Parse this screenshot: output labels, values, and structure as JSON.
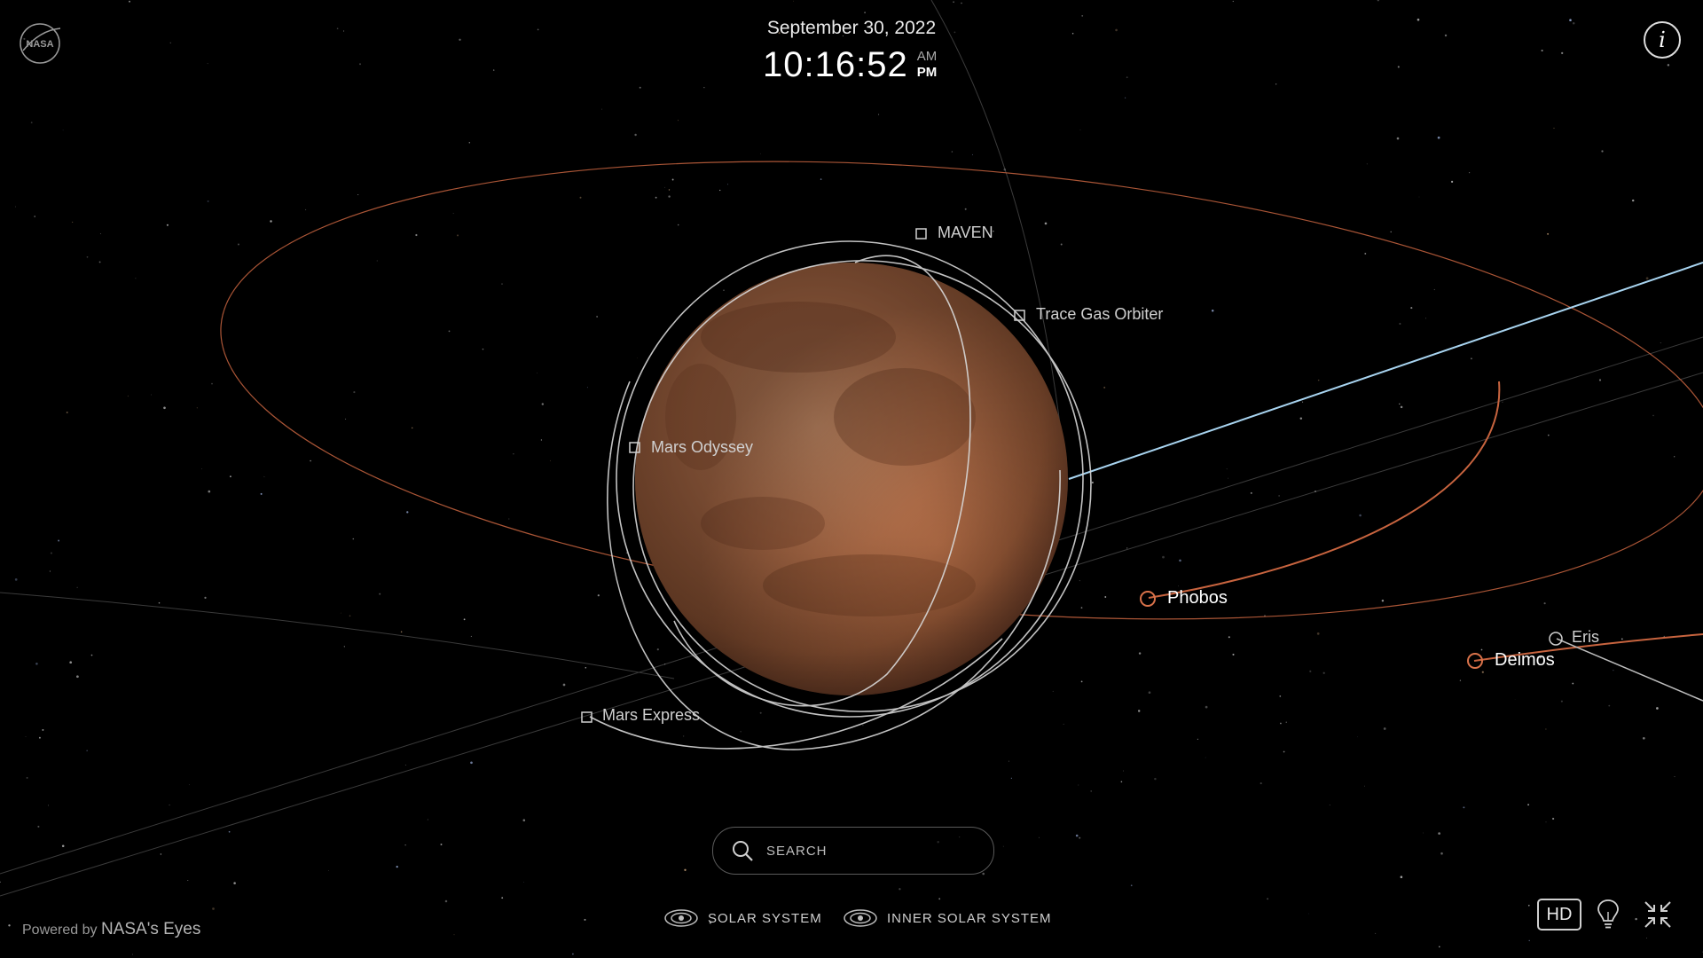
{
  "header": {
    "date": "September 30, 2022",
    "time": "10:16:52",
    "am": "AM",
    "pm": "PM"
  },
  "logo": {
    "text": "NASA"
  },
  "info": {
    "glyph": "i"
  },
  "spacecraft": [
    {
      "id": "maven",
      "label": "MAVEN"
    },
    {
      "id": "tgo",
      "label": "Trace Gas Orbiter"
    },
    {
      "id": "odyssey",
      "label": "Mars Odyssey"
    },
    {
      "id": "express",
      "label": "Mars Express"
    }
  ],
  "moons": [
    {
      "id": "phobos",
      "label": "Phobos"
    },
    {
      "id": "deimos",
      "label": "Deimos"
    }
  ],
  "dwarf_planets": [
    {
      "id": "eris",
      "label": "Eris"
    }
  ],
  "search": {
    "placeholder": "SEARCH"
  },
  "nav": {
    "solar_system": "SOLAR SYSTEM",
    "inner_solar_system": "INNER SOLAR SYSTEM"
  },
  "footer": {
    "powered_by": "Powered by",
    "brand": "NASA's Eyes",
    "hd_label": "HD"
  },
  "colors": {
    "background": "#000000",
    "moon_orbit": "#c8643f",
    "spacecraft_orbit": "#d8d8d8",
    "sun_line": "#a8d4f0",
    "mars_surface": "#b8704a"
  }
}
